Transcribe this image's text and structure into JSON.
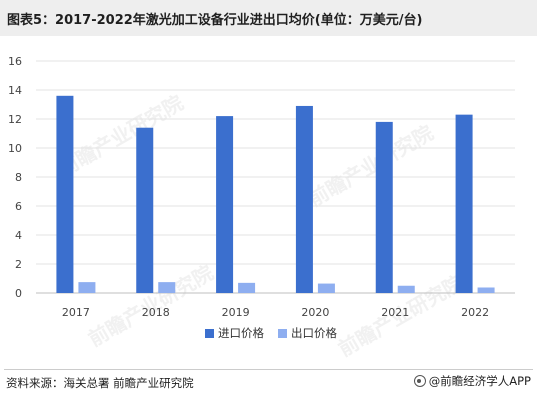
{
  "header": {
    "title": "图表5：2017-2022年激光加工设备行业进出口均价(单位：万美元/台)"
  },
  "footer": {
    "source": "资料来源：海关总署 前瞻产业研究院",
    "brand": "@前瞻经济学人APP"
  },
  "watermark": {
    "text": "前瞻产业研究院"
  },
  "chart_data": {
    "type": "bar",
    "categories": [
      "2017",
      "2018",
      "2019",
      "2020",
      "2021",
      "2022"
    ],
    "series": [
      {
        "name": "进口价格",
        "color": "#3b6fce",
        "values": [
          13.6,
          11.4,
          12.2,
          12.9,
          11.8,
          12.3
        ]
      },
      {
        "name": "出口价格",
        "color": "#8eaef0",
        "values": [
          0.75,
          0.75,
          0.7,
          0.65,
          0.5,
          0.38
        ]
      }
    ],
    "yticks": [
      "0",
      "2",
      "4",
      "6",
      "8",
      "10",
      "12",
      "14",
      "16"
    ],
    "ylim": [
      0,
      16
    ],
    "grid": true,
    "legend": "bottom"
  }
}
